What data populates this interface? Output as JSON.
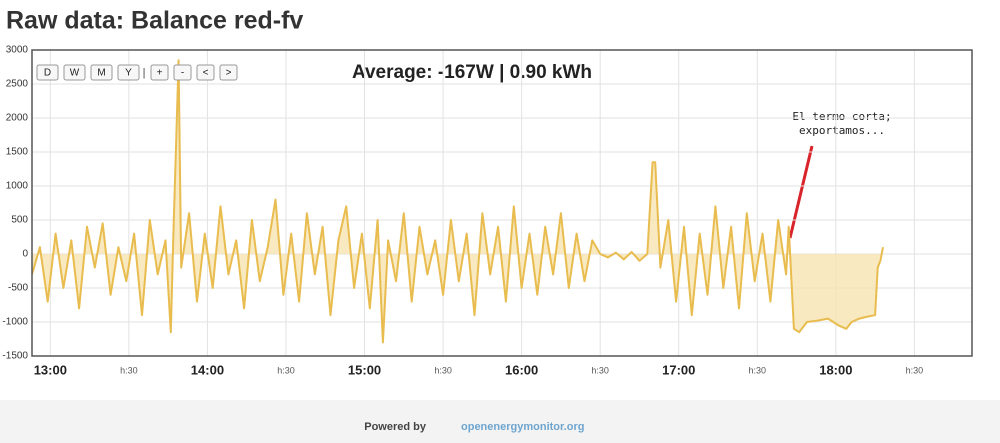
{
  "header": {
    "title": "Raw data: Balance red-fv"
  },
  "toolbar": {
    "buttons": [
      "D",
      "W",
      "M",
      "Y",
      "+",
      "-",
      "<",
      ">"
    ],
    "separator": "|"
  },
  "chart_data": {
    "type": "area",
    "stat_text": "Average: -167W | 0.90 kWh",
    "annotation": [
      "El termo corta;",
      "exportamos..."
    ],
    "color": "#e8bc4f",
    "fill": "#f6e3b0",
    "grid": true,
    "ylim": [
      -1500,
      3000
    ],
    "yticks": [
      -1500,
      -1000,
      -500,
      0,
      500,
      1000,
      1500,
      2000,
      2500,
      3000
    ],
    "xlim": [
      773,
      1132
    ],
    "xticks": [
      {
        "value": 780,
        "label": "13:00"
      },
      {
        "value": 810,
        "label": "h:30"
      },
      {
        "value": 840,
        "label": "14:00"
      },
      {
        "value": 870,
        "label": "h:30"
      },
      {
        "value": 900,
        "label": "15:00"
      },
      {
        "value": 930,
        "label": "h:30"
      },
      {
        "value": 960,
        "label": "16:00"
      },
      {
        "value": 990,
        "label": "h:30"
      },
      {
        "value": 1020,
        "label": "17:00"
      },
      {
        "value": 1050,
        "label": "h:30"
      },
      {
        "value": 1080,
        "label": "18:00"
      },
      {
        "value": 1110,
        "label": "h:30"
      }
    ],
    "x": [
      773,
      776,
      779,
      782,
      785,
      788,
      791,
      794,
      797,
      800,
      803,
      806,
      809,
      812,
      815,
      818,
      821,
      824,
      826,
      827,
      829,
      830,
      833,
      836,
      839,
      842,
      845,
      848,
      851,
      854,
      857,
      860,
      863,
      866,
      869,
      872,
      875,
      878,
      881,
      884,
      887,
      890,
      893,
      896,
      899,
      902,
      905,
      907,
      909,
      912,
      915,
      918,
      921,
      924,
      927,
      930,
      933,
      936,
      939,
      942,
      945,
      948,
      951,
      954,
      957,
      960,
      963,
      966,
      969,
      972,
      975,
      978,
      981,
      984,
      987,
      990,
      993,
      996,
      999,
      1002,
      1005,
      1008,
      1010,
      1011,
      1013,
      1016,
      1019,
      1022,
      1025,
      1028,
      1031,
      1034,
      1037,
      1040,
      1043,
      1046,
      1049,
      1052,
      1055,
      1058,
      1061,
      1062,
      1064,
      1066,
      1069,
      1073,
      1077,
      1081,
      1084,
      1086,
      1089,
      1092,
      1095,
      1096,
      1097,
      1098
    ],
    "values": [
      -300,
      100,
      -700,
      300,
      -500,
      200,
      -800,
      400,
      -200,
      450,
      -600,
      100,
      -400,
      300,
      -900,
      500,
      -300,
      200,
      -1150,
      300,
      2850,
      -200,
      600,
      -700,
      300,
      -500,
      700,
      -300,
      200,
      -800,
      500,
      -400,
      100,
      800,
      -600,
      300,
      -700,
      600,
      -300,
      400,
      -900,
      200,
      700,
      -500,
      300,
      -800,
      500,
      -1300,
      200,
      -400,
      600,
      -700,
      400,
      -300,
      200,
      -600,
      500,
      -400,
      300,
      -900,
      600,
      -300,
      400,
      -700,
      700,
      -500,
      300,
      -600,
      400,
      -300,
      600,
      -500,
      300,
      -400,
      200,
      0,
      -50,
      20,
      -80,
      30,
      -100,
      0,
      1350,
      1350,
      -200,
      500,
      -700,
      400,
      -900,
      300,
      -600,
      700,
      -500,
      400,
      -800,
      600,
      -400,
      300,
      -700,
      500,
      -300,
      400,
      -1100,
      -1150,
      -1000,
      -980,
      -950,
      -1050,
      -1100,
      -1000,
      -950,
      -920,
      -900,
      -200,
      -100,
      100
    ]
  },
  "footer": {
    "prefix": "Powered by",
    "link": "openenergymonitor.org"
  }
}
